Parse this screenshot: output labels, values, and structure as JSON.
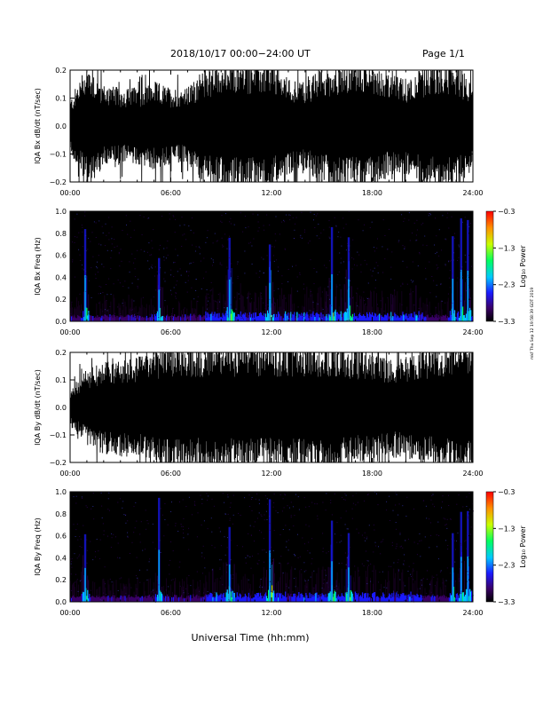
{
  "header": {
    "title": "2018/10/17   00:00−24:00 UT",
    "page": "Page 1/1"
  },
  "footer": {
    "xlabel": "Universal Time (hh:mm)"
  },
  "stamp": "mkf Thu Sep 12 19:58:39 GDT 2019",
  "colors": {
    "line": "#000000",
    "background": "#000000"
  },
  "chart_data": [
    {
      "type": "line",
      "ylabel": "IQA Bx dB/dt (nT/sec)",
      "xticks": [
        "00:00",
        "06:00",
        "12:00",
        "18:00",
        "24:00"
      ],
      "xlim": [
        0,
        24
      ],
      "ylim": [
        -0.2,
        0.2
      ],
      "yticks": [
        "0.2",
        "0.1",
        "0.0",
        "−0.1",
        "−0.2"
      ],
      "amplitude_envelope": {
        "x_hours": [
          0,
          1,
          2,
          3,
          4,
          5,
          6,
          7,
          8,
          9,
          10,
          11,
          12,
          13,
          14,
          15,
          16,
          17,
          18,
          19,
          20,
          21,
          22,
          23,
          24
        ],
        "amplitude": [
          0.08,
          0.2,
          0.13,
          0.12,
          0.12,
          0.14,
          0.12,
          0.12,
          0.18,
          0.2,
          0.2,
          0.2,
          0.2,
          0.15,
          0.14,
          0.18,
          0.2,
          0.2,
          0.2,
          0.16,
          0.15,
          0.18,
          0.2,
          0.2,
          0.13
        ]
      }
    },
    {
      "type": "heatmap",
      "ylabel": "IQA Bx Freq (Hz)",
      "xticks": [
        "00:00",
        "06:00",
        "12:00",
        "18:00",
        "24:00"
      ],
      "xlim": [
        0,
        24
      ],
      "ylim": [
        0,
        1.0
      ],
      "yticks": [
        "1.0",
        "0.8",
        "0.6",
        "0.4",
        "0.2",
        "0.0"
      ],
      "colorbar": {
        "label": "Log₁₀ Power",
        "ticks": [
          "−0.3",
          "−1.3",
          "−2.3",
          "−3.3"
        ],
        "range": [
          -3.3,
          -0.3
        ]
      },
      "activity_bursts_hours": [
        0.9,
        5.3,
        9.5,
        11.9,
        15.6,
        16.6,
        22.8,
        23.3,
        23.7
      ]
    },
    {
      "type": "line",
      "ylabel": "IQA By dB/dt (nT/sec)",
      "xticks": [
        "00:00",
        "06:00",
        "12:00",
        "18:00",
        "24:00"
      ],
      "xlim": [
        0,
        24
      ],
      "ylim": [
        -0.2,
        0.2
      ],
      "yticks": [
        "0.2",
        "0.1",
        "0.0",
        "−0.1",
        "−0.2"
      ],
      "amplitude_envelope": {
        "x_hours": [
          0,
          1,
          2,
          3,
          4,
          5,
          6,
          7,
          8,
          9,
          10,
          11,
          12,
          13,
          14,
          15,
          16,
          17,
          18,
          19,
          20,
          21,
          22,
          23,
          24
        ],
        "amplitude": [
          0.06,
          0.12,
          0.15,
          0.16,
          0.16,
          0.18,
          0.2,
          0.2,
          0.2,
          0.2,
          0.2,
          0.2,
          0.2,
          0.2,
          0.2,
          0.2,
          0.2,
          0.18,
          0.18,
          0.16,
          0.16,
          0.18,
          0.2,
          0.2,
          0.2
        ]
      }
    },
    {
      "type": "heatmap",
      "ylabel": "IQA By Freq (Hz)",
      "xticks": [
        "00:00",
        "06:00",
        "12:00",
        "18:00",
        "24:00"
      ],
      "xlim": [
        0,
        24
      ],
      "ylim": [
        0,
        1.0
      ],
      "yticks": [
        "1.0",
        "0.8",
        "0.6",
        "0.4",
        "0.2",
        "0.0"
      ],
      "colorbar": {
        "label": "Log₁₀ Power",
        "ticks": [
          "−0.3",
          "−1.3",
          "−2.3",
          "−3.3"
        ],
        "range": [
          -3.3,
          -0.3
        ]
      },
      "activity_bursts_hours": [
        0.9,
        5.3,
        9.5,
        11.9,
        15.6,
        16.6,
        22.8,
        23.3,
        23.7
      ]
    }
  ]
}
